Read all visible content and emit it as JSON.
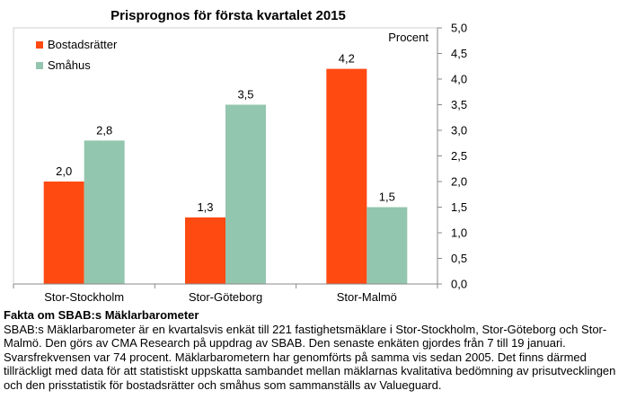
{
  "chart_data": {
    "type": "bar",
    "title": "Prisprognos för första kvartalet 2015",
    "ylabel": "Procent",
    "categories": [
      "Stor-Stockholm",
      "Stor-Göteborg",
      "Stor-Malmö"
    ],
    "series": [
      {
        "name": "Bostadsrätter",
        "values": [
          2.0,
          1.3,
          4.2
        ],
        "labels": [
          "2,0",
          "1,3",
          "4,2"
        ],
        "color": "#ff4a12"
      },
      {
        "name": "Småhus",
        "values": [
          2.8,
          3.5,
          1.5
        ],
        "labels": [
          "2,8",
          "3,5",
          "1,5"
        ],
        "color": "#93c6ae"
      }
    ],
    "ylim": [
      0,
      5
    ],
    "yticks": [
      5.0,
      4.5,
      4.0,
      3.5,
      3.0,
      2.5,
      2.0,
      1.5,
      1.0,
      0.5,
      0.0
    ],
    "ytick_labels": [
      "5,0",
      "4,5",
      "4,0",
      "3,5",
      "3,0",
      "2,5",
      "2,0",
      "1,5",
      "1,0",
      "0,5",
      "0,0"
    ],
    "y_axis_side": "right",
    "grid": false,
    "legend": "top-left"
  },
  "facts": {
    "title": "Fakta om SBAB:s Mäklarbarometer",
    "body": "SBAB:s Mäklarbarometer är en kvartalsvis enkät till 221 fastighetsmäklare i Stor-Stockholm, Stor-Göteborg och Stor-Malmö. Den görs av CMA Research på uppdrag av SBAB. Den senaste enkäten gjordes från 7 till 19 januari. Svarsfrekvensen var 74 procent. Mäklarbarometern har genomförts på samma vis sedan 2005. Det finns därmed tillräckligt med data för att statistiskt uppskatta sambandet mellan mäklarnas kvalitativa bedömning av prisutvecklingen och den prisstatistik för bostadsrätter och småhus som sammanställs av Valueguard."
  }
}
